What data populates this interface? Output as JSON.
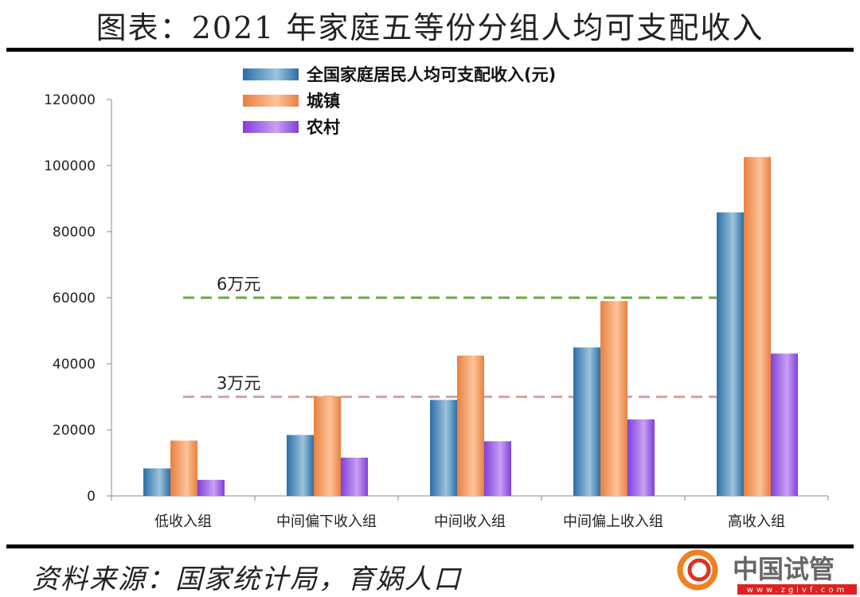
{
  "title": "图表：2021 年家庭五等份分组人均可支配收入",
  "source": "资料来源：国家统计局，育娲人口",
  "logo": {
    "name": "中国试管",
    "url_text": "www.zgivf.com"
  },
  "chart_data": {
    "type": "bar",
    "categories": [
      "低收入组",
      "中间偏下收入组",
      "中间收入组",
      "中间偏上收入组",
      "高收入组"
    ],
    "series": [
      {
        "name": "全国家庭居民人均可支配收入(元)",
        "color": "#4a90c8",
        "values": [
          8333,
          18446,
          29053,
          44949,
          85836
        ]
      },
      {
        "name": "城镇",
        "color": "#f0a060",
        "values": [
          16746,
          30133,
          42498,
          59005,
          102596
        ]
      },
      {
        "name": "农村",
        "color": "#9a6ae0",
        "values": [
          4856,
          11586,
          16546,
          23167,
          43082
        ]
      }
    ],
    "ylim": [
      0,
      120000
    ],
    "yticks": [
      0,
      20000,
      40000,
      60000,
      80000,
      100000,
      120000
    ],
    "legend": "top-left",
    "grid": false,
    "reference_lines": [
      {
        "value": 60000,
        "label": "6万元",
        "color": "#6aaa3a"
      },
      {
        "value": 30000,
        "label": "3万元",
        "color": "#e0a0a0"
      }
    ]
  }
}
